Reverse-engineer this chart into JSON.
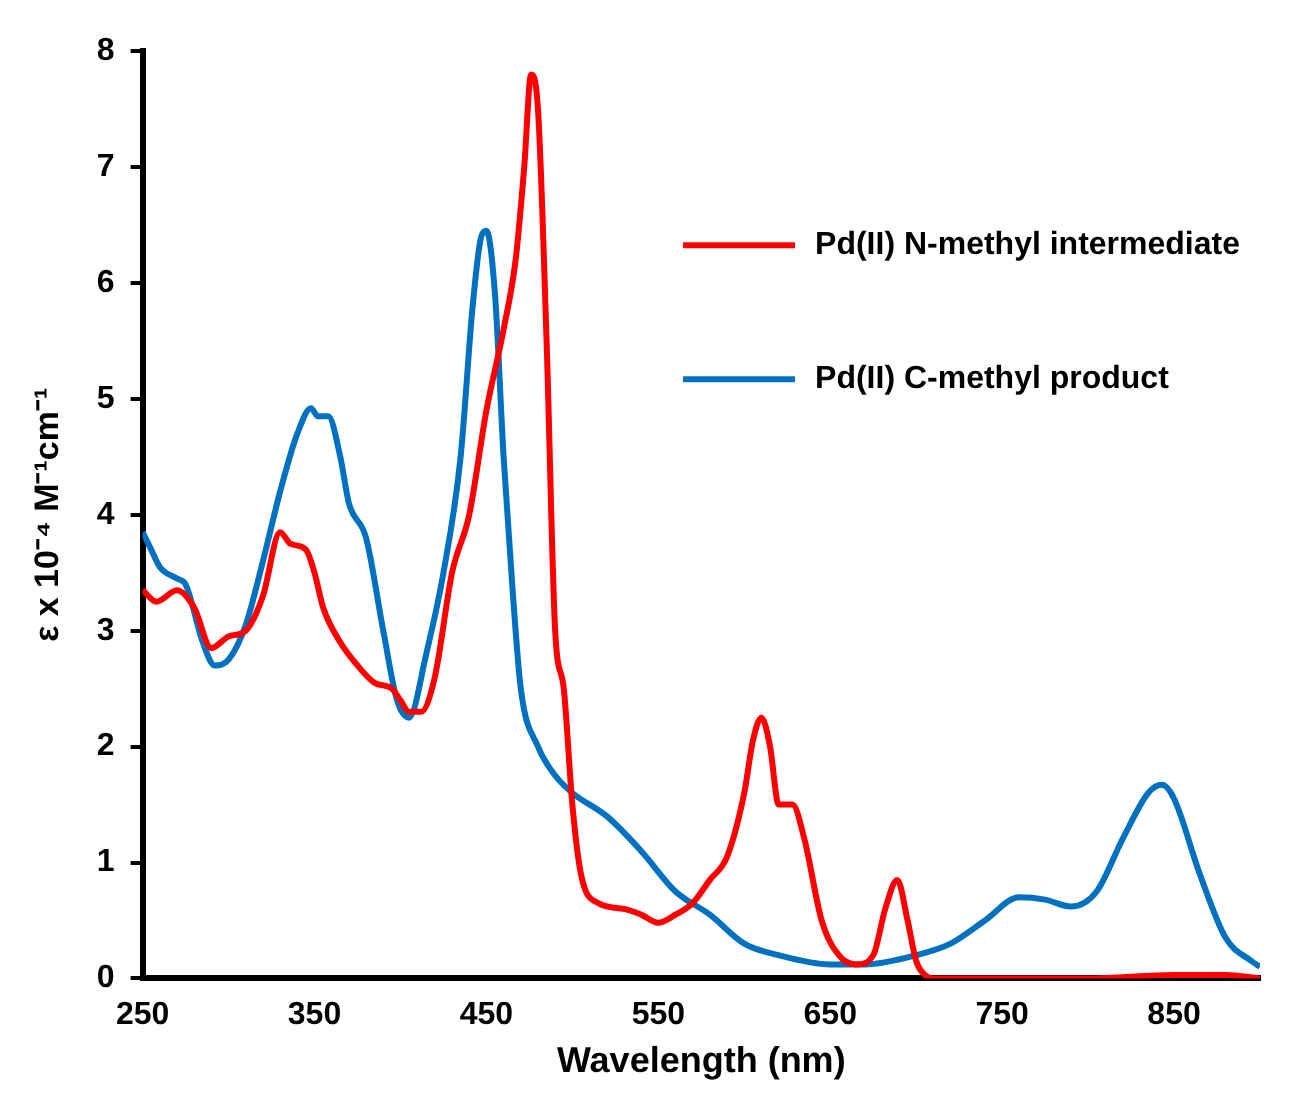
{
  "chart_data": {
    "type": "line",
    "xlabel": "Wavelength (nm)",
    "ylabel": "ε x 10⁻⁴ M⁻¹cm⁻¹",
    "xlim": [
      250,
      900
    ],
    "xticks": [
      250,
      350,
      450,
      550,
      650,
      750,
      850
    ],
    "ylim": [
      0,
      8
    ],
    "yticks": [
      0,
      1,
      2,
      3,
      4,
      5,
      6,
      7,
      8
    ],
    "grid": false,
    "legend": "top right",
    "marker": "none",
    "line_style": "solid",
    "series": [
      {
        "name": "Pd(II) N-methyl intermediate",
        "color": "#ff0000",
        "x": [
          250,
          258,
          270,
          280,
          290,
          300,
          310,
          320,
          330,
          336,
          345,
          350,
          355,
          365,
          375,
          385,
          395,
          400,
          405,
          412,
          420,
          430,
          440,
          450,
          460,
          467,
          472,
          476,
          480,
          485,
          490,
          495,
          500,
          505,
          515,
          530,
          540,
          550,
          560,
          570,
          580,
          590,
          600,
          605,
          610,
          615,
          620,
          628,
          635,
          645,
          655,
          665,
          675,
          682,
          689,
          695,
          700,
          705,
          710,
          750,
          800,
          850,
          880,
          900
        ],
        "values": [
          3.35,
          3.25,
          3.35,
          3.2,
          2.85,
          2.95,
          3.0,
          3.3,
          3.85,
          3.75,
          3.7,
          3.5,
          3.2,
          2.9,
          2.7,
          2.55,
          2.5,
          2.4,
          2.3,
          2.3,
          2.6,
          3.5,
          4.0,
          4.9,
          5.6,
          6.2,
          7.0,
          7.8,
          7.5,
          5.5,
          3.0,
          2.5,
          1.5,
          0.9,
          0.65,
          0.6,
          0.55,
          0.48,
          0.55,
          0.65,
          0.85,
          1.05,
          1.6,
          2.05,
          2.25,
          2.0,
          1.5,
          1.5,
          1.2,
          0.5,
          0.2,
          0.12,
          0.2,
          0.6,
          0.85,
          0.5,
          0.15,
          0.03,
          0,
          0,
          0,
          0.03,
          0.03,
          0
        ]
      },
      {
        "name": "Pd(II) C-methyl product",
        "color": "#0070c0",
        "x": [
          250,
          255,
          260,
          270,
          275,
          285,
          292,
          300,
          310,
          320,
          330,
          340,
          348,
          352,
          358,
          365,
          370,
          380,
          390,
          398,
          405,
          415,
          425,
          435,
          442,
          447,
          450,
          455,
          460,
          465,
          470,
          480,
          490,
          500,
          520,
          540,
          560,
          580,
          600,
          620,
          650,
          670,
          700,
          720,
          740,
          760,
          775,
          790,
          805,
          820,
          835,
          843,
          850,
          865,
          880,
          895,
          900
        ],
        "values": [
          3.85,
          3.7,
          3.55,
          3.45,
          3.4,
          2.9,
          2.7,
          2.75,
          3.05,
          3.6,
          4.2,
          4.7,
          4.92,
          4.85,
          4.85,
          4.5,
          4.1,
          3.8,
          3.0,
          2.4,
          2.25,
          2.8,
          3.5,
          4.5,
          5.8,
          6.4,
          6.45,
          5.9,
          4.5,
          3.4,
          2.5,
          2.0,
          1.75,
          1.6,
          1.4,
          1.1,
          0.75,
          0.55,
          0.3,
          0.2,
          0.12,
          0.12,
          0.2,
          0.3,
          0.5,
          0.7,
          0.68,
          0.62,
          0.75,
          1.2,
          1.6,
          1.67,
          1.55,
          0.9,
          0.35,
          0.15,
          0.1
        ]
      }
    ]
  }
}
